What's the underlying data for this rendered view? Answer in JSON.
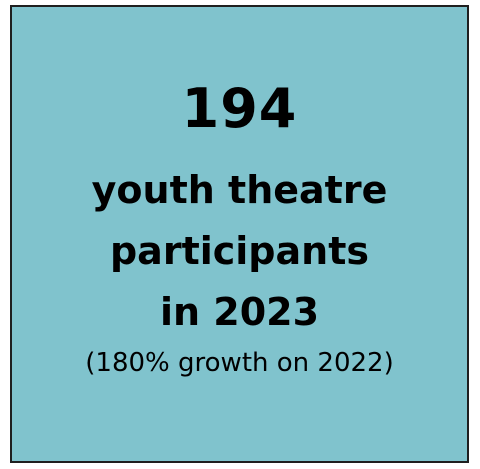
{
  "card": {
    "number": "194",
    "headline_lines": [
      "youth theatre",
      "participants",
      "in 2023"
    ],
    "note": "(180% growth on 2022)",
    "colors": {
      "background": "#80c3cd",
      "border": "#1f1f1f",
      "text": "#000000"
    }
  }
}
